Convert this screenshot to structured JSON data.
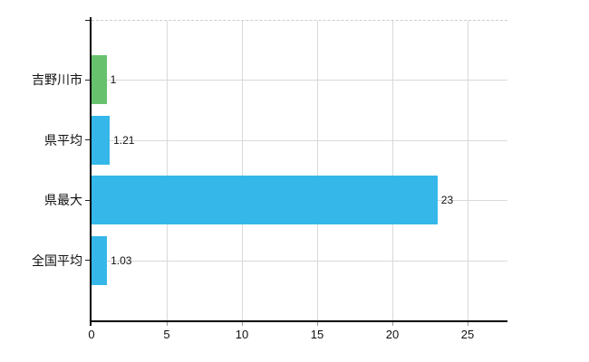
{
  "chart": {
    "background": "#ffffff",
    "colors": {
      "bar_blue": "#35b7e9",
      "bar_green": "#68c16d",
      "gridline": "#d9d9d9",
      "top_border": "#cccccc",
      "axis": "#000000",
      "text": "#111111"
    }
  },
  "chart_data": {
    "type": "bar",
    "orientation": "horizontal",
    "title": "",
    "xlabel": "",
    "ylabel": "",
    "categories": [
      "吉野川市",
      "県平均",
      "県最大",
      "全国平均"
    ],
    "values": [
      1,
      1.21,
      23,
      1.03
    ],
    "value_labels": [
      "1",
      "1.21",
      "23",
      "1.03"
    ],
    "bar_colors": [
      "#68c16d",
      "#35b7e9",
      "#35b7e9",
      "#35b7e9"
    ],
    "x_ticks": [
      0,
      5,
      10,
      15,
      20,
      25
    ],
    "x_tick_labels": [
      "0",
      "5",
      "10",
      "15",
      "20",
      "25"
    ],
    "xlim": [
      0,
      27.65
    ],
    "grid": true,
    "legend_position": "none"
  }
}
